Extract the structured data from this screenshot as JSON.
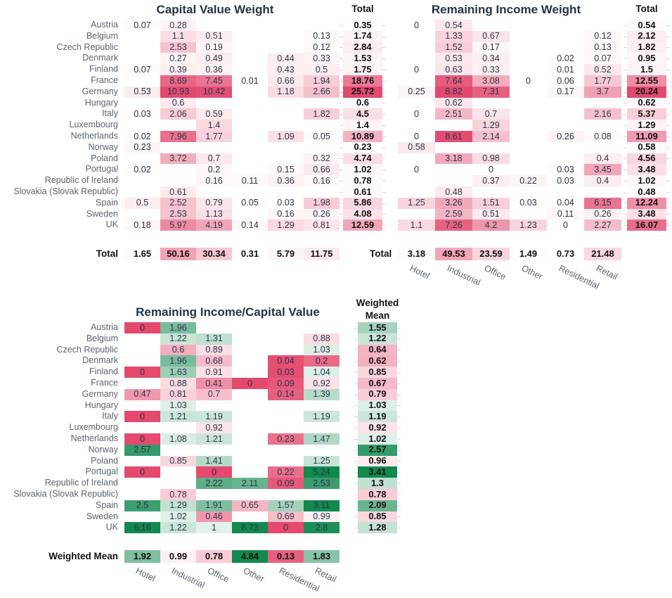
{
  "palette": {
    "heat_max_red": "#e2496e",
    "diverging_red": "#e5496d",
    "diverging_green": "#11894f",
    "title_color": "#243447",
    "label_color": "#5a6472",
    "value_color": "#2a3648",
    "total_color": "#111111"
  },
  "chart_data": [
    {
      "type": "heatmap",
      "title": "Capital Value Weight",
      "colorscale": "white-to-red, normalized per group (body / total column / total row)",
      "x": [
        "Hotel",
        "Industrial",
        "Office",
        "Other",
        "Residential",
        "Retail"
      ],
      "show_x_labels": false,
      "y": [
        "Austria",
        "Belgium",
        "Czech Republic",
        "Denmark",
        "Finland",
        "France",
        "Germany",
        "Hungary",
        "Italy",
        "Luxembourg",
        "Netherlands",
        "Norway",
        "Poland",
        "Portugal",
        "Republic of Ireland",
        "Slovakia (Slovak Republic)",
        "Spain",
        "Sweden",
        "UK"
      ],
      "values": [
        [
          "0.07",
          "0.28",
          null,
          null,
          null,
          null
        ],
        [
          null,
          "1.1",
          "0.51",
          null,
          null,
          "0.13"
        ],
        [
          null,
          "2.53",
          "0.19",
          null,
          null,
          "0.12"
        ],
        [
          null,
          "0.27",
          "0.49",
          null,
          "0.44",
          "0.33"
        ],
        [
          "0.07",
          "0.39",
          "0.36",
          null,
          "0.43",
          "0.5"
        ],
        [
          null,
          "8.69",
          "7.45",
          "0.01",
          "0.66",
          "1.94"
        ],
        [
          "0.53",
          "10.93",
          "10.42",
          null,
          "1.18",
          "2.66"
        ],
        [
          null,
          "0.6",
          null,
          null,
          null,
          null
        ],
        [
          "0.03",
          "2.06",
          "0.59",
          null,
          null,
          "1.82"
        ],
        [
          null,
          null,
          "1.4",
          null,
          null,
          null
        ],
        [
          "0.02",
          "7.96",
          "1.77",
          null,
          "1.09",
          "0.05"
        ],
        [
          "0.23",
          null,
          null,
          null,
          null,
          null
        ],
        [
          null,
          "3.72",
          "0.7",
          null,
          null,
          "0.32"
        ],
        [
          "0.02",
          null,
          "0.2",
          null,
          "0.15",
          "0.66"
        ],
        [
          null,
          null,
          "0.16",
          "0.11",
          "0.36",
          "0.16"
        ],
        [
          null,
          "0.61",
          null,
          null,
          null,
          null
        ],
        [
          "0.5",
          "2.52",
          "0.79",
          "0.05",
          "0.03",
          "1.98"
        ],
        [
          null,
          "2.53",
          "1.13",
          null,
          "0.16",
          "0.26"
        ],
        [
          "0.18",
          "5.97",
          "4.19",
          "0.14",
          "1.29",
          "0.81"
        ]
      ],
      "row_total_header": "Total",
      "row_totals": [
        "0.35",
        "1.74",
        "2.84",
        "1.53",
        "1.75",
        "18.76",
        "25.72",
        "0.6",
        "4.5",
        "1.4",
        "10.89",
        "0.23",
        "4.74",
        "1.02",
        "0.78",
        "0.61",
        "5.86",
        "4.08",
        "12.59"
      ],
      "col_total_label": "Total",
      "col_totals": [
        "1.65",
        "50.16",
        "30.34",
        "0.31",
        "5.79",
        "11.75"
      ]
    },
    {
      "type": "heatmap",
      "title": "Remaining Income Weight",
      "colorscale": "white-to-red, normalized per group (body / total column / total row)",
      "x": [
        "Hotel",
        "Industrial",
        "Office",
        "Other",
        "Residential",
        "Retail"
      ],
      "show_x_labels": true,
      "y": [
        "Austria",
        "Belgium",
        "Czech Republic",
        "Denmark",
        "Finland",
        "France",
        "Germany",
        "Hungary",
        "Italy",
        "Luxembourg",
        "Netherlands",
        "Norway",
        "Poland",
        "Portugal",
        "Republic of Ireland",
        "Slovakia (Slovak Republic)",
        "Spain",
        "Sweden",
        "UK"
      ],
      "values": [
        [
          "0",
          "0.54",
          null,
          null,
          null,
          null
        ],
        [
          null,
          "1.33",
          "0.67",
          null,
          null,
          "0.12"
        ],
        [
          null,
          "1.52",
          "0.17",
          null,
          null,
          "0.13"
        ],
        [
          null,
          "0.53",
          "0.34",
          null,
          "0.02",
          "0.07"
        ],
        [
          "0",
          "0.63",
          "0.33",
          null,
          "0.01",
          "0.52"
        ],
        [
          null,
          "7.64",
          "3.08",
          "0",
          "0.06",
          "1.77"
        ],
        [
          "0.25",
          "8.82",
          "7.31",
          null,
          "0.17",
          "3.7"
        ],
        [
          null,
          "0.62",
          null,
          null,
          null,
          null
        ],
        [
          "0",
          "2.51",
          "0.7",
          null,
          null,
          "2.16"
        ],
        [
          null,
          null,
          "1.29",
          null,
          null,
          null
        ],
        [
          "0",
          "8.61",
          "2.14",
          null,
          "0.26",
          "0.08"
        ],
        [
          "0.58",
          null,
          null,
          null,
          null,
          null
        ],
        [
          null,
          "3.18",
          "0.98",
          null,
          null,
          "0.4"
        ],
        [
          "0",
          null,
          "0",
          null,
          "0.03",
          "3.45"
        ],
        [
          null,
          null,
          "0.37",
          "0.22",
          "0.03",
          "0.4"
        ],
        [
          null,
          "0.48",
          null,
          null,
          null,
          null
        ],
        [
          "1.25",
          "3.26",
          "1.51",
          "0.03",
          "0.04",
          "6.15"
        ],
        [
          null,
          "2.59",
          "0.51",
          null,
          "0.11",
          "0.26"
        ],
        [
          "1.1",
          "7.26",
          "4.2",
          "1.23",
          "0",
          "2.27"
        ]
      ],
      "row_total_header": "Total",
      "row_totals": [
        "0.54",
        "2.12",
        "1.82",
        "0.95",
        "1.5",
        "12.55",
        "20.24",
        "0.62",
        "5.37",
        "1.29",
        "11.09",
        "0.58",
        "4.56",
        "3.48",
        "1.02",
        "0.48",
        "12.24",
        "3.48",
        "16.07"
      ],
      "col_total_label": "Total",
      "col_totals": [
        "3.18",
        "49.53",
        "23.59",
        "1.49",
        "0.73",
        "21.48"
      ]
    },
    {
      "type": "heatmap",
      "title": "Remaining Income/Capital Value",
      "colorscale": "diverging red-white-green centered at 1",
      "x": [
        "Hotel",
        "Industrial",
        "Office",
        "Other",
        "Residential",
        "Retail"
      ],
      "show_x_labels": true,
      "y": [
        "Austria",
        "Belgium",
        "Czech Republic",
        "Denmark",
        "Finland",
        "France",
        "Germany",
        "Hungary",
        "Italy",
        "Luxembourg",
        "Netherlands",
        "Norway",
        "Poland",
        "Portugal",
        "Republic of Ireland",
        "Slovakia (Slovak Republic)",
        "Spain",
        "Sweden",
        "UK"
      ],
      "values": [
        [
          "0",
          "1.96",
          null,
          null,
          null,
          null
        ],
        [
          null,
          "1.22",
          "1.31",
          null,
          null,
          "0.88"
        ],
        [
          null,
          "0.6",
          "0.89",
          null,
          null,
          "1.03"
        ],
        [
          null,
          "1.96",
          "0.68",
          null,
          "0.04",
          "0.2"
        ],
        [
          "0",
          "1.63",
          "0.91",
          null,
          "0.03",
          "1.04"
        ],
        [
          null,
          "0.88",
          "0.41",
          "0",
          "0.09",
          "0.92"
        ],
        [
          "0.47",
          "0.81",
          "0.7",
          null,
          "0.14",
          "1.39"
        ],
        [
          null,
          "1.03",
          null,
          null,
          null,
          null
        ],
        [
          "0",
          "1.21",
          "1.19",
          null,
          null,
          "1.19"
        ],
        [
          null,
          null,
          "0.92",
          null,
          null,
          null
        ],
        [
          "0",
          "1.08",
          "1.21",
          null,
          "0.23",
          "1.47"
        ],
        [
          "2.57",
          null,
          null,
          null,
          null,
          null
        ],
        [
          null,
          "0.85",
          "1.41",
          null,
          null,
          "1.25"
        ],
        [
          "0",
          null,
          "0",
          null,
          "0.22",
          "5.24"
        ],
        [
          null,
          null,
          "2.22",
          "2.11",
          "0.09",
          "2.53"
        ],
        [
          null,
          "0.78",
          null,
          null,
          null,
          null
        ],
        [
          "2.5",
          "1.29",
          "1.91",
          "0.65",
          "1.57",
          "3.11"
        ],
        [
          null,
          "1.02",
          "0.46",
          null,
          "0.69",
          "0.99"
        ],
        [
          "6.16",
          "1.22",
          "1",
          "8.73",
          "0",
          "2.8"
        ]
      ],
      "row_total_header": "Weighted Mean",
      "row_totals": [
        "1.55",
        "1.22",
        "0.64",
        "0.62",
        "0.85",
        "0.67",
        "0.79",
        "1.03",
        "1.19",
        "0.92",
        "1.02",
        "2.57",
        "0.96",
        "3.41",
        "1.3",
        "0.78",
        "2.09",
        "0.85",
        "1.28"
      ],
      "col_total_label": "Weighted Mean",
      "col_totals": [
        "1.92",
        "0.99",
        "0.78",
        "4.84",
        "0.13",
        "1.83"
      ]
    }
  ]
}
